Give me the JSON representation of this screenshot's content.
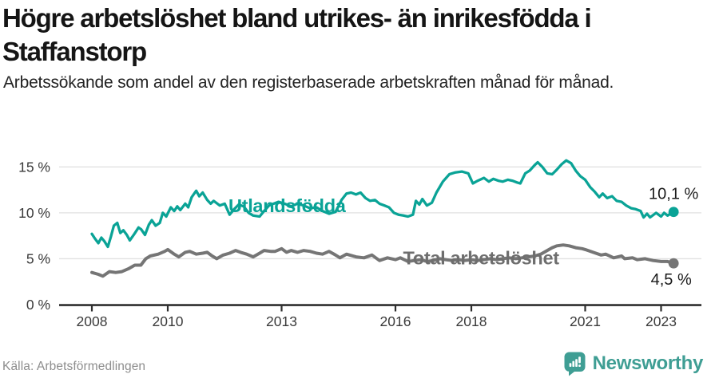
{
  "header": {
    "title": "Högre arbetslöshet bland utrikes- än inrikesfödda i Staffanstorp",
    "subtitle": "Arbetssökande som andel av den registerbaserade arbetskraften månad för månad."
  },
  "footer": {
    "source": "Källa: Arbetsförmedlingen",
    "brand": "Newsworthy"
  },
  "colors": {
    "series1": "#0aa396",
    "series2": "#757575",
    "grid": "#e1e1e1",
    "axis": "#2e2e2e",
    "tick_text": "#3a3a3a",
    "value_text": "#1b1b1b",
    "label2_text": "#6e6e6e",
    "brand": "#3f9e94"
  },
  "chart_data": {
    "type": "line",
    "title": "Högre arbetslöshet bland utrikes- än inrikesfödda i Staffanstorp",
    "subtitle": "Arbetssökande som andel av den registerbaserade arbetskraften månad för månad.",
    "x_axis": {
      "range": [
        2007.95,
        2023.45
      ],
      "ticks": [
        {
          "value": 2008,
          "label": "2008"
        },
        {
          "value": 2010,
          "label": "2010"
        },
        {
          "value": 2013,
          "label": "2013"
        },
        {
          "value": 2016,
          "label": "2016"
        },
        {
          "value": 2018,
          "label": "2018"
        },
        {
          "value": 2021,
          "label": "2021"
        },
        {
          "value": 2023,
          "label": "2023"
        }
      ]
    },
    "y_axis": {
      "range": [
        0,
        16.8
      ],
      "grid": true,
      "ticks": [
        {
          "value": 0,
          "label": "0 %"
        },
        {
          "value": 5,
          "label": "5 %"
        },
        {
          "value": 10,
          "label": "10 %"
        },
        {
          "value": 15,
          "label": "15 %"
        }
      ]
    },
    "annotations": [
      {
        "text": "Utlandsfödda",
        "x": 2011.6,
        "y": 10.75,
        "color": "#0aa396"
      },
      {
        "text": "Total arbetslöshet",
        "x": 2016.2,
        "y": 5.08,
        "color": "#6e6e6e"
      }
    ],
    "series": [
      {
        "name": "Utlandsfödda",
        "color": "#0aa396",
        "end_value": 10.1,
        "end_label": "10,1 %",
        "points": [
          [
            2008.0,
            7.7
          ],
          [
            2008.08,
            7.2
          ],
          [
            2008.17,
            6.7
          ],
          [
            2008.25,
            7.3
          ],
          [
            2008.33,
            6.9
          ],
          [
            2008.42,
            6.3
          ],
          [
            2008.5,
            7.4
          ],
          [
            2008.58,
            8.6
          ],
          [
            2008.67,
            8.9
          ],
          [
            2008.75,
            7.8
          ],
          [
            2008.83,
            8.1
          ],
          [
            2008.92,
            7.6
          ],
          [
            2009.0,
            7.0
          ],
          [
            2009.12,
            7.7
          ],
          [
            2009.23,
            8.4
          ],
          [
            2009.3,
            8.2
          ],
          [
            2009.4,
            7.6
          ],
          [
            2009.5,
            8.7
          ],
          [
            2009.58,
            9.2
          ],
          [
            2009.68,
            8.6
          ],
          [
            2009.79,
            8.9
          ],
          [
            2009.87,
            10.0
          ],
          [
            2009.96,
            9.6
          ],
          [
            2010.08,
            10.6
          ],
          [
            2010.17,
            10.2
          ],
          [
            2010.25,
            10.7
          ],
          [
            2010.33,
            10.3
          ],
          [
            2010.46,
            11.0
          ],
          [
            2010.54,
            10.6
          ],
          [
            2010.63,
            11.7
          ],
          [
            2010.75,
            12.4
          ],
          [
            2010.83,
            11.8
          ],
          [
            2010.92,
            12.2
          ],
          [
            2011.04,
            11.4
          ],
          [
            2011.13,
            11.0
          ],
          [
            2011.21,
            11.3
          ],
          [
            2011.37,
            10.8
          ],
          [
            2011.5,
            11.0
          ],
          [
            2011.63,
            9.8
          ],
          [
            2011.75,
            10.4
          ],
          [
            2011.87,
            10.9
          ],
          [
            2012.0,
            10.7
          ],
          [
            2012.13,
            10.0
          ],
          [
            2012.25,
            9.7
          ],
          [
            2012.42,
            9.6
          ],
          [
            2012.54,
            10.2
          ],
          [
            2012.67,
            10.8
          ],
          [
            2012.79,
            11.0
          ],
          [
            2012.92,
            11.2
          ],
          [
            2013.08,
            11.0
          ],
          [
            2013.25,
            10.7
          ],
          [
            2013.42,
            11.0
          ],
          [
            2013.58,
            10.8
          ],
          [
            2013.75,
            10.5
          ],
          [
            2013.92,
            10.6
          ],
          [
            2014.08,
            10.2
          ],
          [
            2014.25,
            9.9
          ],
          [
            2014.42,
            10.1
          ],
          [
            2014.58,
            11.4
          ],
          [
            2014.71,
            12.1
          ],
          [
            2014.83,
            12.2
          ],
          [
            2014.96,
            12.0
          ],
          [
            2015.08,
            12.2
          ],
          [
            2015.21,
            11.6
          ],
          [
            2015.33,
            11.3
          ],
          [
            2015.46,
            11.4
          ],
          [
            2015.58,
            11.0
          ],
          [
            2015.71,
            10.8
          ],
          [
            2015.83,
            10.6
          ],
          [
            2015.96,
            10.0
          ],
          [
            2016.08,
            9.8
          ],
          [
            2016.21,
            9.7
          ],
          [
            2016.33,
            9.6
          ],
          [
            2016.46,
            9.8
          ],
          [
            2016.54,
            11.3
          ],
          [
            2016.63,
            10.9
          ],
          [
            2016.71,
            11.5
          ],
          [
            2016.83,
            10.8
          ],
          [
            2016.96,
            11.1
          ],
          [
            2017.08,
            12.2
          ],
          [
            2017.25,
            13.4
          ],
          [
            2017.42,
            14.2
          ],
          [
            2017.58,
            14.4
          ],
          [
            2017.75,
            14.5
          ],
          [
            2017.92,
            14.3
          ],
          [
            2018.04,
            13.2
          ],
          [
            2018.17,
            13.5
          ],
          [
            2018.33,
            13.8
          ],
          [
            2018.46,
            13.4
          ],
          [
            2018.58,
            13.7
          ],
          [
            2018.71,
            13.5
          ],
          [
            2018.83,
            13.4
          ],
          [
            2018.96,
            13.6
          ],
          [
            2019.08,
            13.5
          ],
          [
            2019.21,
            13.3
          ],
          [
            2019.29,
            13.2
          ],
          [
            2019.42,
            14.3
          ],
          [
            2019.54,
            14.6
          ],
          [
            2019.67,
            15.2
          ],
          [
            2019.75,
            15.5
          ],
          [
            2019.87,
            15.0
          ],
          [
            2020.0,
            14.3
          ],
          [
            2020.13,
            14.2
          ],
          [
            2020.25,
            14.7
          ],
          [
            2020.38,
            15.3
          ],
          [
            2020.5,
            15.7
          ],
          [
            2020.63,
            15.4
          ],
          [
            2020.75,
            14.6
          ],
          [
            2020.87,
            14.0
          ],
          [
            2021.0,
            13.6
          ],
          [
            2021.13,
            12.8
          ],
          [
            2021.25,
            12.3
          ],
          [
            2021.37,
            11.7
          ],
          [
            2021.46,
            12.1
          ],
          [
            2021.58,
            11.6
          ],
          [
            2021.71,
            11.8
          ],
          [
            2021.83,
            11.3
          ],
          [
            2021.96,
            11.2
          ],
          [
            2022.08,
            10.8
          ],
          [
            2022.21,
            10.5
          ],
          [
            2022.33,
            10.4
          ],
          [
            2022.46,
            10.2
          ],
          [
            2022.54,
            9.5
          ],
          [
            2022.63,
            9.9
          ],
          [
            2022.71,
            9.5
          ],
          [
            2022.87,
            10.0
          ],
          [
            2023.0,
            9.6
          ],
          [
            2023.08,
            10.0
          ],
          [
            2023.17,
            9.7
          ],
          [
            2023.33,
            10.1
          ]
        ]
      },
      {
        "name": "Total arbetslöshet",
        "color": "#757575",
        "end_value": 4.5,
        "end_label": "4,5 %",
        "points": [
          [
            2008.0,
            3.5
          ],
          [
            2008.17,
            3.3
          ],
          [
            2008.29,
            3.1
          ],
          [
            2008.46,
            3.6
          ],
          [
            2008.63,
            3.5
          ],
          [
            2008.79,
            3.6
          ],
          [
            2008.96,
            3.9
          ],
          [
            2009.13,
            4.3
          ],
          [
            2009.29,
            4.3
          ],
          [
            2009.42,
            5.0
          ],
          [
            2009.54,
            5.3
          ],
          [
            2009.75,
            5.5
          ],
          [
            2009.92,
            5.8
          ],
          [
            2010.0,
            6.0
          ],
          [
            2010.17,
            5.5
          ],
          [
            2010.29,
            5.2
          ],
          [
            2010.46,
            5.7
          ],
          [
            2010.58,
            5.8
          ],
          [
            2010.75,
            5.5
          ],
          [
            2010.92,
            5.6
          ],
          [
            2011.04,
            5.7
          ],
          [
            2011.17,
            5.3
          ],
          [
            2011.29,
            5.0
          ],
          [
            2011.46,
            5.4
          ],
          [
            2011.63,
            5.6
          ],
          [
            2011.79,
            5.9
          ],
          [
            2011.92,
            5.7
          ],
          [
            2012.08,
            5.5
          ],
          [
            2012.25,
            5.2
          ],
          [
            2012.42,
            5.6
          ],
          [
            2012.54,
            5.9
          ],
          [
            2012.71,
            5.8
          ],
          [
            2012.83,
            5.8
          ],
          [
            2013.0,
            6.1
          ],
          [
            2013.13,
            5.7
          ],
          [
            2013.25,
            5.9
          ],
          [
            2013.42,
            5.7
          ],
          [
            2013.58,
            5.9
          ],
          [
            2013.75,
            5.8
          ],
          [
            2013.92,
            5.6
          ],
          [
            2014.08,
            5.5
          ],
          [
            2014.25,
            5.8
          ],
          [
            2014.42,
            5.4
          ],
          [
            2014.54,
            5.1
          ],
          [
            2014.71,
            5.5
          ],
          [
            2014.96,
            5.2
          ],
          [
            2015.17,
            5.1
          ],
          [
            2015.38,
            5.4
          ],
          [
            2015.58,
            4.8
          ],
          [
            2015.79,
            5.1
          ],
          [
            2016.0,
            4.9
          ],
          [
            2016.13,
            5.1
          ],
          [
            2016.33,
            4.7
          ],
          [
            2016.5,
            4.8
          ],
          [
            2016.67,
            4.9
          ],
          [
            2016.83,
            4.7
          ],
          [
            2017.0,
            4.8
          ],
          [
            2017.17,
            5.0
          ],
          [
            2017.33,
            4.9
          ],
          [
            2017.5,
            4.8
          ],
          [
            2017.67,
            4.9
          ],
          [
            2017.83,
            4.8
          ],
          [
            2018.0,
            4.9
          ],
          [
            2018.17,
            4.8
          ],
          [
            2018.33,
            4.9
          ],
          [
            2018.5,
            5.0
          ],
          [
            2018.67,
            4.9
          ],
          [
            2018.83,
            5.0
          ],
          [
            2019.0,
            5.1
          ],
          [
            2019.17,
            5.0
          ],
          [
            2019.33,
            5.1
          ],
          [
            2019.5,
            5.2
          ],
          [
            2019.67,
            5.3
          ],
          [
            2019.83,
            5.5
          ],
          [
            2020.0,
            5.9
          ],
          [
            2020.13,
            6.2
          ],
          [
            2020.25,
            6.4
          ],
          [
            2020.42,
            6.5
          ],
          [
            2020.58,
            6.4
          ],
          [
            2020.75,
            6.2
          ],
          [
            2020.92,
            6.1
          ],
          [
            2021.0,
            6.0
          ],
          [
            2021.21,
            5.7
          ],
          [
            2021.42,
            5.4
          ],
          [
            2021.54,
            5.5
          ],
          [
            2021.75,
            5.1
          ],
          [
            2021.96,
            5.3
          ],
          [
            2022.04,
            5.0
          ],
          [
            2022.25,
            5.1
          ],
          [
            2022.37,
            4.9
          ],
          [
            2022.58,
            5.0
          ],
          [
            2022.79,
            4.8
          ],
          [
            2023.0,
            4.7
          ],
          [
            2023.17,
            4.7
          ],
          [
            2023.33,
            4.5
          ]
        ]
      }
    ]
  }
}
